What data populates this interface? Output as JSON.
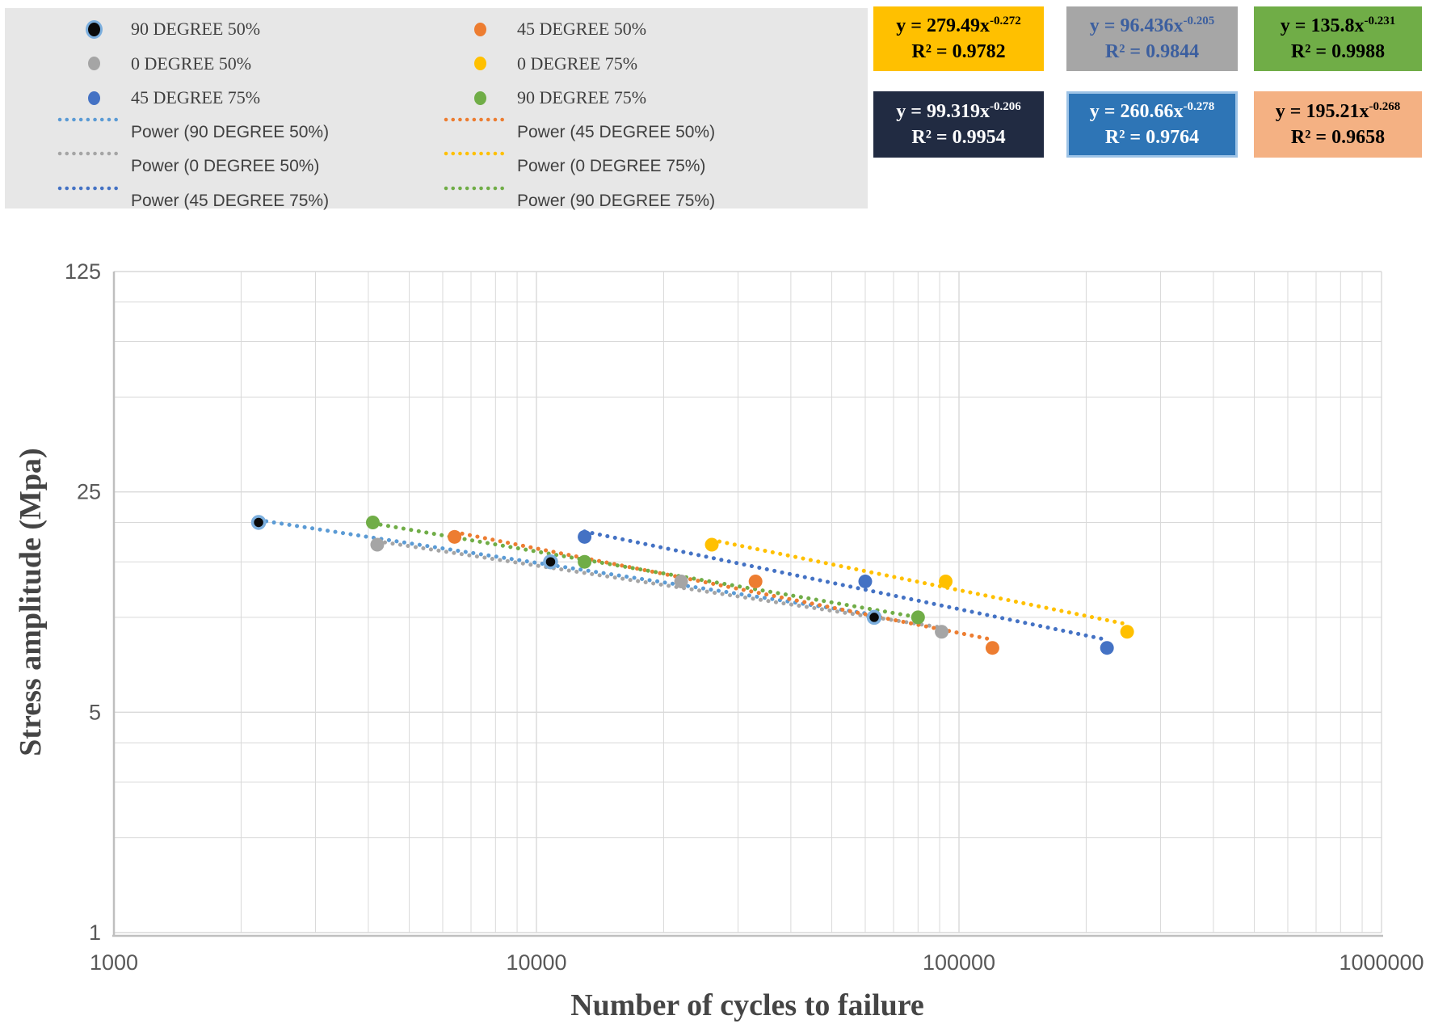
{
  "legend": {
    "bg": "#E7E7E7",
    "rows": [
      [
        {
          "type": "marker",
          "label": "90 DEGREE 50%",
          "color": "#0A0A0A",
          "ring": "#7CAFDE"
        },
        {
          "type": "marker",
          "label": "45 DEGREE 50%",
          "color": "#ED7D31",
          "ring": null
        }
      ],
      [
        {
          "type": "marker",
          "label": "0 DEGREE 50%",
          "color": "#A5A5A5",
          "ring": null
        },
        {
          "type": "marker",
          "label": "0 DEGREE 75%",
          "color": "#FFC000",
          "ring": null
        }
      ],
      [
        {
          "type": "marker",
          "label": "45 DEGREE 75%",
          "color": "#4472C4",
          "ring": null
        },
        {
          "type": "marker",
          "label": "90 DEGREE 75%",
          "color": "#70AD47",
          "ring": null
        }
      ],
      [
        {
          "type": "power",
          "label": "Power (90 DEGREE 50%)",
          "color": "#5B9BD5"
        },
        {
          "type": "power",
          "label": "Power (45 DEGREE 50%)",
          "color": "#ED7D31"
        }
      ],
      [
        {
          "type": "power",
          "label": "Power (0 DEGREE 50%)",
          "color": "#A5A5A5"
        },
        {
          "type": "power",
          "label": "Power (0 DEGREE 75%)",
          "color": "#FFC000"
        }
      ],
      [
        {
          "type": "power",
          "label": "Power (45 DEGREE 75%)",
          "color": "#4472C4"
        },
        {
          "type": "power",
          "label": "Power (90 DEGREE 75%)",
          "color": "#70AD47"
        }
      ]
    ]
  },
  "equations": [
    {
      "base": "y = 279.49x",
      "exp": "-0.272",
      "r2": "R² = 0.9782",
      "bg": "#FFC000",
      "fg": "#000000",
      "border": null,
      "series": "0 DEGREE 75%",
      "col": 0,
      "row": 0
    },
    {
      "base": "y = 96.436x",
      "exp": "-0.205",
      "r2": "R² = 0.9844",
      "bg": "#A6A6A6",
      "fg": "#3C5F9F",
      "border": null,
      "series": "0 DEGREE 50%",
      "col": 1,
      "row": 0
    },
    {
      "base": "y = 135.8x",
      "exp": "-0.231",
      "r2": "R² = 0.9988",
      "bg": "#70AD47",
      "fg": "#000000",
      "border": null,
      "series": "90 DEGREE 75%",
      "col": 2,
      "row": 0
    },
    {
      "base": "y = 99.319x",
      "exp": "-0.206",
      "r2": "R² = 0.9954",
      "bg": "#212B42",
      "fg": "#FFFFFF",
      "border": null,
      "series": "90 DEGREE 50%",
      "col": 0,
      "row": 1
    },
    {
      "base": "y = 260.66x",
      "exp": "-0.278",
      "r2": "R² = 0.9764",
      "bg": "#2E75B6",
      "fg": "#FFFFFF",
      "border": "#9DC3E6",
      "series": "45 DEGREE 75%",
      "col": 1,
      "row": 1
    },
    {
      "base": "y = 195.21x",
      "exp": "-0.268",
      "r2": "R² = 0.9658",
      "bg": "#F4B183",
      "fg": "#000000",
      "border": null,
      "series": "45 DEGREE 50%",
      "col": 2,
      "row": 1
    }
  ],
  "chart_data": {
    "type": "scatter",
    "x_scale": "log",
    "y_scale": "log",
    "xlabel": "Number of cycles to failure",
    "ylabel": "Stress amplitude (Mpa)",
    "xlim": [
      1000,
      1000000
    ],
    "ylim": [
      1,
      125
    ],
    "x_ticks": [
      1000,
      10000,
      100000,
      1000000
    ],
    "y_ticks": [
      125,
      25,
      5,
      1
    ],
    "y_minor": [
      2,
      3,
      4,
      10,
      15,
      20,
      50,
      75,
      100
    ],
    "grid": true,
    "legend_position": "top-left",
    "series": [
      {
        "name": "90 DEGREE 50%",
        "marker_color": "#0A0A0A",
        "marker_ring": "#7CAFDE",
        "trend_color": "#5B9BD5",
        "points": [
          [
            2200,
            20
          ],
          [
            10800,
            15
          ],
          [
            63000,
            10
          ]
        ],
        "fit": {
          "a": 99.319,
          "b": -0.206,
          "r2": 0.9954
        }
      },
      {
        "name": "0 DEGREE 50%",
        "marker_color": "#A5A5A5",
        "marker_ring": null,
        "trend_color": "#A5A5A5",
        "points": [
          [
            4200,
            17
          ],
          [
            22000,
            13
          ],
          [
            91000,
            9
          ]
        ],
        "fit": {
          "a": 96.436,
          "b": -0.205,
          "r2": 0.9844
        }
      },
      {
        "name": "45 DEGREE 50%",
        "marker_color": "#ED7D31",
        "marker_ring": null,
        "trend_color": "#ED7D31",
        "points": [
          [
            6400,
            18
          ],
          [
            33000,
            13
          ],
          [
            120000,
            8
          ]
        ],
        "fit": {
          "a": 195.21,
          "b": -0.268,
          "r2": 0.9658
        }
      },
      {
        "name": "0 DEGREE 75%",
        "marker_color": "#FFC000",
        "marker_ring": null,
        "trend_color": "#FFC000",
        "points": [
          [
            26000,
            17
          ],
          [
            93000,
            13
          ],
          [
            250000,
            9
          ]
        ],
        "fit": {
          "a": 279.49,
          "b": -0.272,
          "r2": 0.9782
        }
      },
      {
        "name": "45 DEGREE 75%",
        "marker_color": "#4472C4",
        "marker_ring": null,
        "trend_color": "#4472C4",
        "points": [
          [
            13000,
            18
          ],
          [
            60000,
            13
          ],
          [
            224000,
            8
          ]
        ],
        "fit": {
          "a": 260.66,
          "b": -0.278,
          "r2": 0.9764
        }
      },
      {
        "name": "90 DEGREE 75%",
        "marker_color": "#70AD47",
        "marker_ring": null,
        "trend_color": "#70AD47",
        "points": [
          [
            4100,
            20
          ],
          [
            13000,
            15
          ],
          [
            80000,
            10
          ]
        ],
        "fit": {
          "a": 135.8,
          "b": -0.231,
          "r2": 0.9988
        }
      }
    ]
  }
}
